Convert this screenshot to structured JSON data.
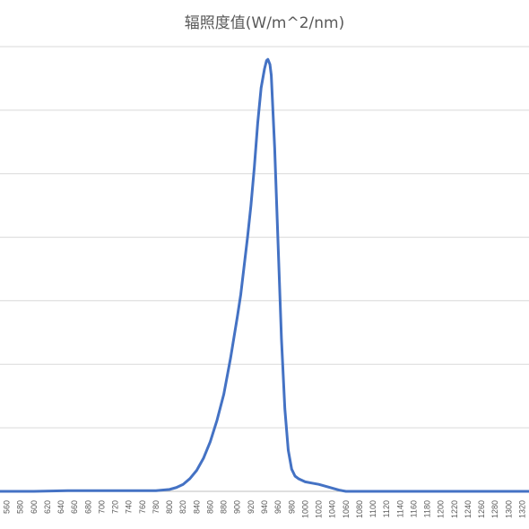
{
  "chart_data": {
    "type": "line",
    "title": "辐照度值(W/m^2/nm)",
    "xlabel": "",
    "ylabel": "",
    "grid": true,
    "legend": "none",
    "color": "#4472c4",
    "ylim": [
      0,
      7
    ],
    "xlim": [
      550,
      1330
    ],
    "x_tick_labels": [
      "560",
      "580",
      "600",
      "620",
      "640",
      "660",
      "680",
      "700",
      "720",
      "740",
      "760",
      "780",
      "800",
      "820",
      "840",
      "860",
      "880",
      "900",
      "920",
      "940",
      "960",
      "980",
      "1000",
      "1020",
      "1040",
      "1060",
      "1080",
      "1100",
      "1120",
      "1140",
      "1160",
      "1180",
      "1200",
      "1220",
      "1240",
      "1260",
      "1280",
      "1300",
      "1320"
    ],
    "series": [
      {
        "x": [
          550,
          600,
          650,
          700,
          750,
          780,
          800,
          810,
          820,
          830,
          840,
          850,
          860,
          870,
          880,
          890,
          900,
          905,
          910,
          915,
          920,
          925,
          930,
          935,
          940,
          943,
          945,
          948,
          950,
          955,
          960,
          965,
          970,
          975,
          980,
          985,
          990,
          1000,
          1010,
          1020,
          1030,
          1040,
          1050,
          1060,
          1080,
          1100,
          1200,
          1330
        ],
        "values": [
          0,
          0,
          0.01,
          0.01,
          0.01,
          0.01,
          0.03,
          0.06,
          0.11,
          0.2,
          0.33,
          0.52,
          0.78,
          1.12,
          1.53,
          2.1,
          2.75,
          3.1,
          3.55,
          4.0,
          4.5,
          5.1,
          5.8,
          6.35,
          6.65,
          6.78,
          6.8,
          6.72,
          6.55,
          5.4,
          3.9,
          2.4,
          1.3,
          0.65,
          0.35,
          0.24,
          0.2,
          0.15,
          0.13,
          0.11,
          0.08,
          0.05,
          0.02,
          0.0,
          0,
          0,
          0,
          0
        ]
      }
    ]
  }
}
